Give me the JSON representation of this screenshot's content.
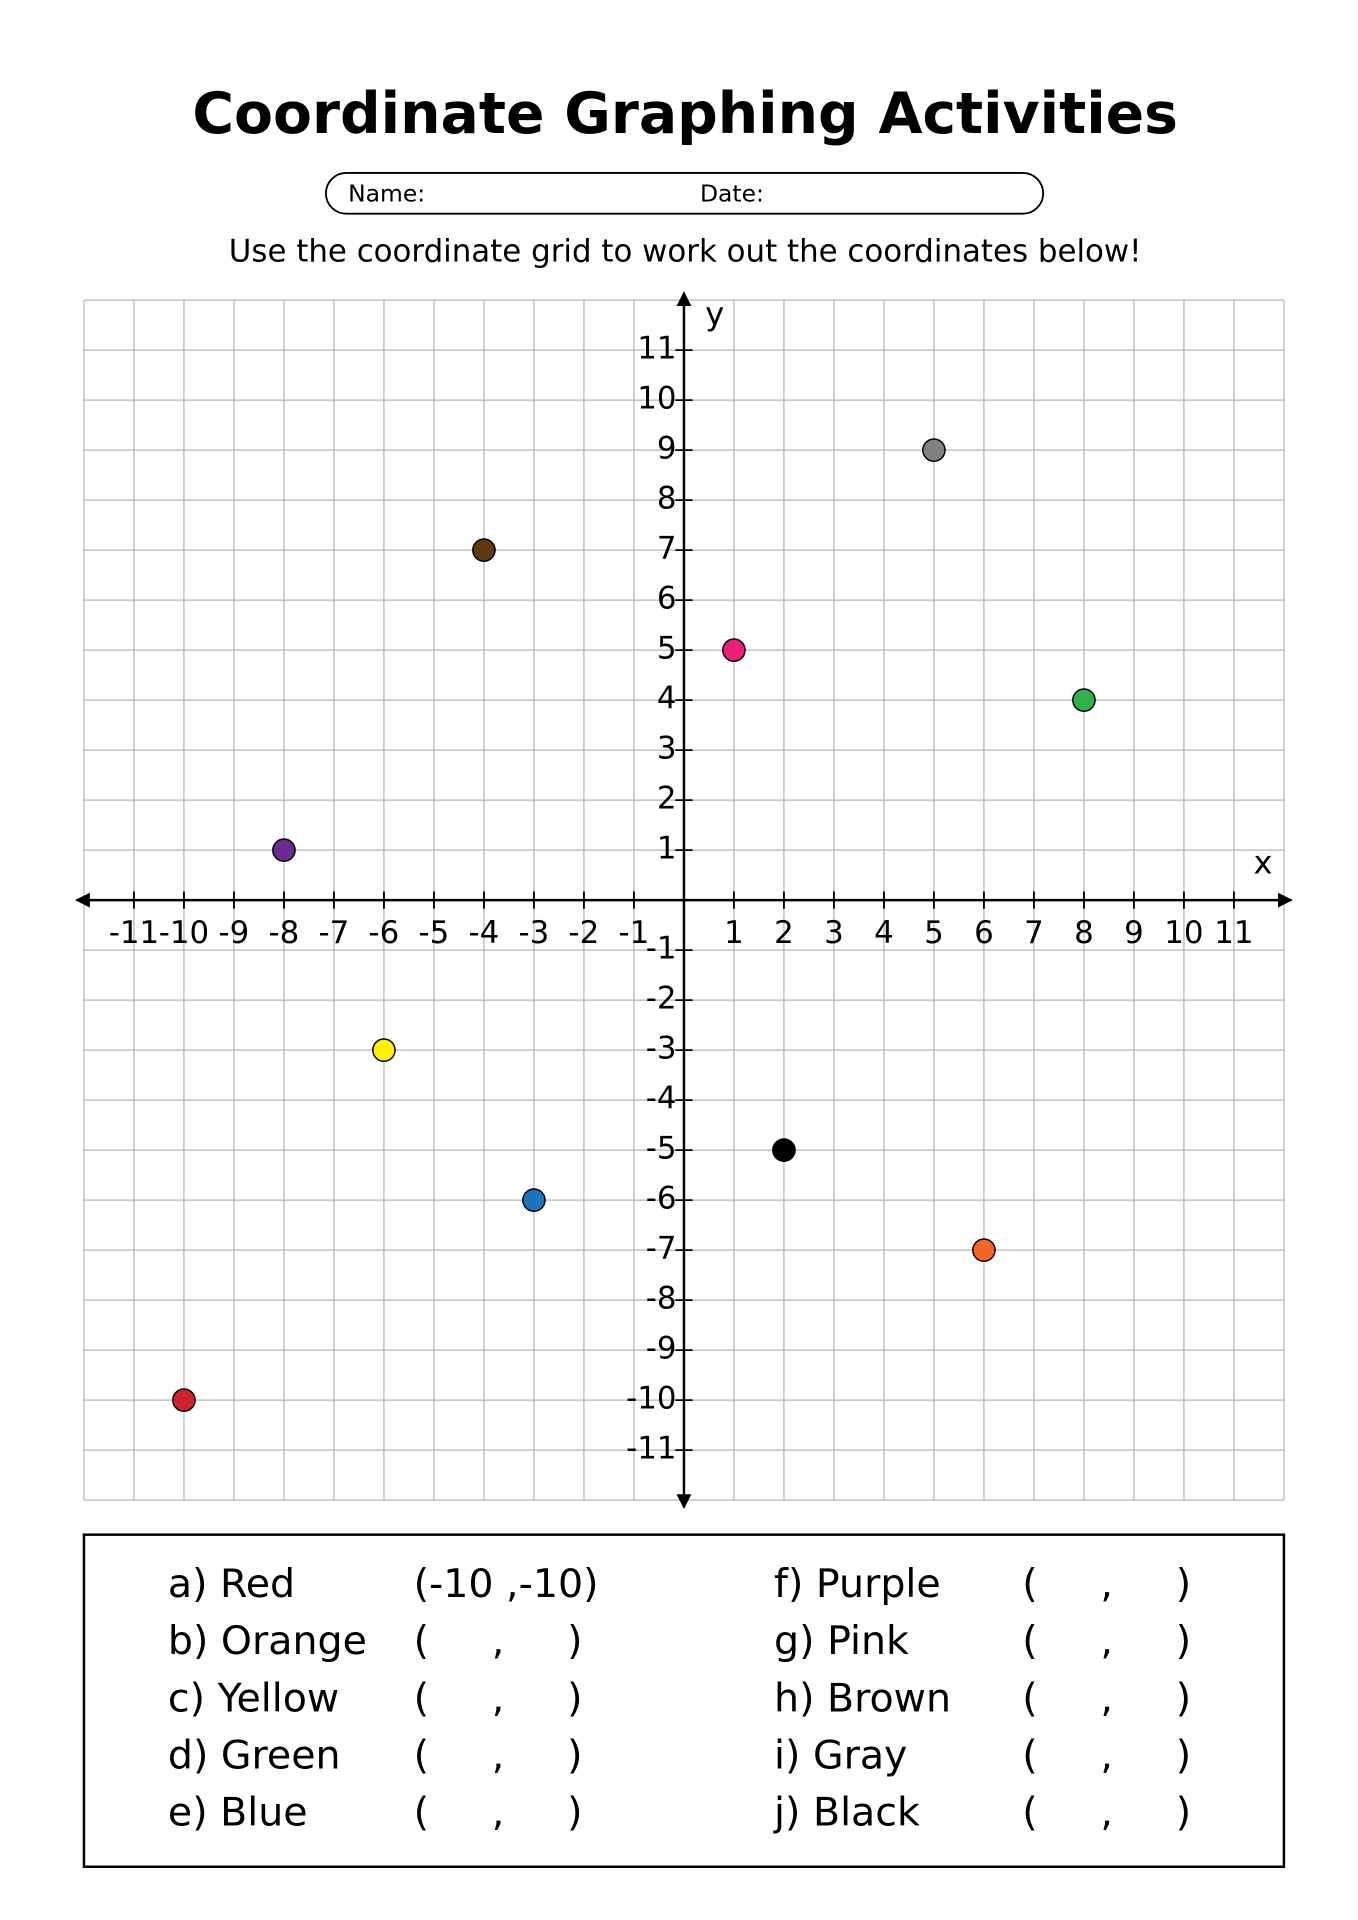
{
  "header": {
    "title": "Coordinate Graphing Activities",
    "name_label": "Name:",
    "date_label": "Date:",
    "instruction": "Use the coordinate grid to work out the coordinates below!"
  },
  "chart_data": {
    "type": "scatter",
    "x_label": "x",
    "y_label": "y",
    "xlim": [
      -12,
      12
    ],
    "ylim": [
      -12,
      12
    ],
    "xticks": [
      -11,
      -10,
      -9,
      -8,
      -7,
      -6,
      -5,
      -4,
      -3,
      -2,
      -1,
      1,
      2,
      3,
      4,
      5,
      6,
      7,
      8,
      9,
      10,
      11
    ],
    "yticks": [
      -11,
      -10,
      -9,
      -8,
      -7,
      -6,
      -5,
      -4,
      -3,
      -2,
      -1,
      1,
      2,
      3,
      4,
      5,
      6,
      7,
      8,
      9,
      10,
      11
    ],
    "grid": true,
    "x": [
      -10,
      6,
      -6,
      8,
      -3,
      -8,
      1,
      -4,
      5,
      2
    ],
    "values": [
      -10,
      -7,
      -3,
      4,
      -6,
      1,
      5,
      7,
      9,
      -5
    ],
    "colors": [
      "#d1212e",
      "#f26522",
      "#fff200",
      "#2fb24a",
      "#1c75bc",
      "#6a2c91",
      "#ec1e79",
      "#603913",
      "#808080",
      "#000000"
    ]
  },
  "answers": [
    {
      "label": "a) Red",
      "answer": "(-10 ,-10)"
    },
    {
      "label": "b) Orange",
      "answer": "(     ,     )"
    },
    {
      "label": "c) Yellow",
      "answer": "(     ,     )"
    },
    {
      "label": "d) Green",
      "answer": "(     ,     )"
    },
    {
      "label": "e) Blue",
      "answer": "(     ,     )"
    },
    {
      "label": "f) Purple",
      "answer": "(     ,     )"
    },
    {
      "label": "g) Pink",
      "answer": "(     ,     )"
    },
    {
      "label": "h) Brown",
      "answer": "(     ,     )"
    },
    {
      "label": "i) Gray",
      "answer": "(     ,     )"
    },
    {
      "label": "j) Black",
      "answer": "(     ,     )"
    }
  ]
}
